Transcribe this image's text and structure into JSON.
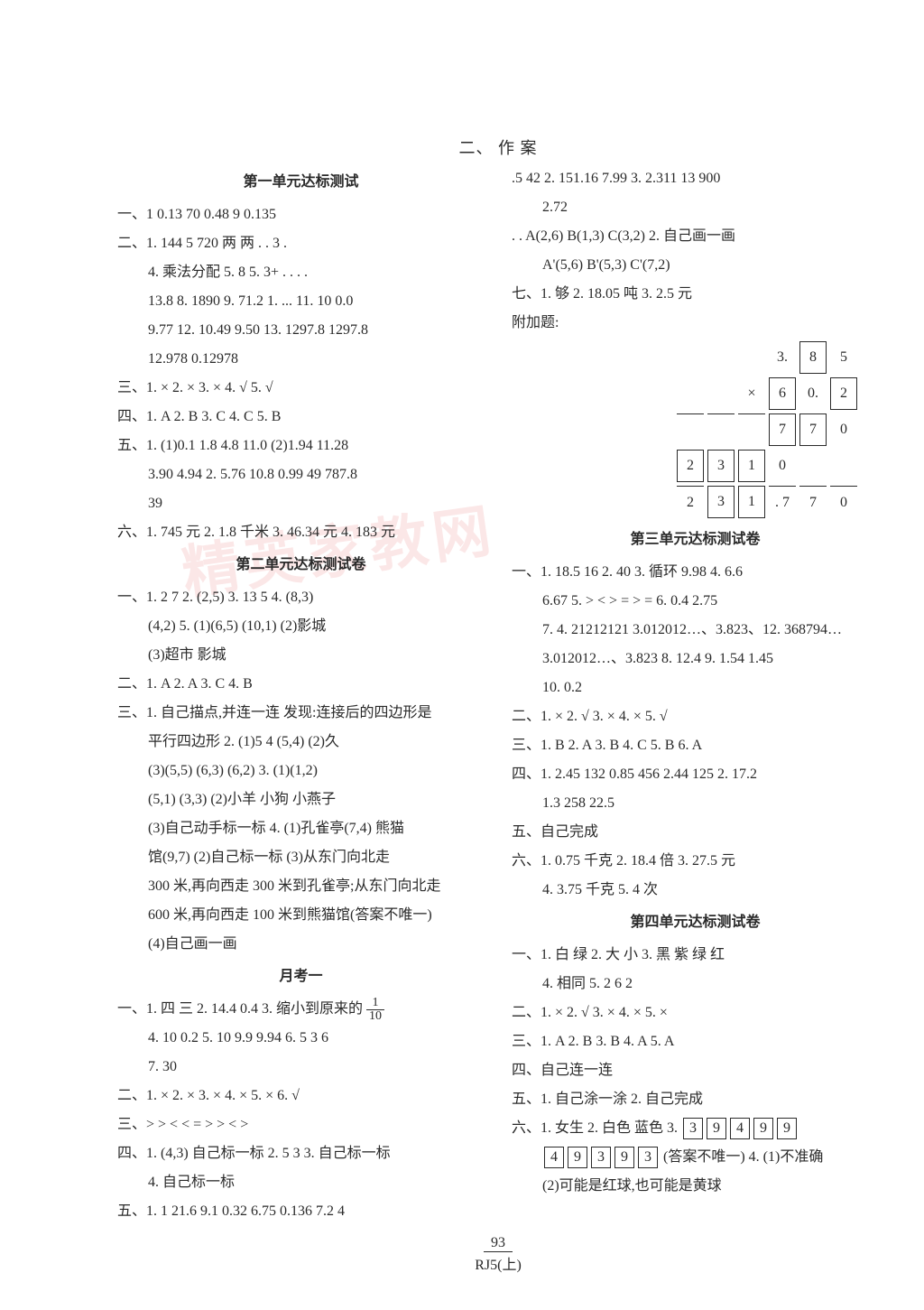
{
  "page": {
    "top_heading": "二、 作 案",
    "footer_page": "93",
    "footer_label": "RJ5(上)"
  },
  "watermark": "精英家教网",
  "left": {
    "unit1_title": "第一单元达标测试",
    "u1_l1": "一、1  0.13  70  0.48  9  0.135",
    "u1_l2": "二、1. 144  5  720  两  两   .   .   3    .",
    "u1_l3": "4. 乘法分配  5.  8   5.  3+  .  .  .   .",
    "u1_l4": "13.8  8. 1890  9. 71.2  1. ...  11. 10  0.0",
    "u1_l5": "9.77  12. 10.49  9.50  13. 1297.8  1297.8",
    "u1_l6": "12.978  0.12978",
    "u1_l7": "三、1. ×  2. ×  3. ×  4. √  5. √",
    "u1_l8": "四、1. A  2. B  3. C  4. C  5. B",
    "u1_l9": "五、1.  (1)0.1  1.8  4.8  11.0  (2)1.94  11.28",
    "u1_l10": "3.90  4.94  2. 5.76  10.8  0.99  49  787.8",
    "u1_l11": "39",
    "u1_l12": "六、1. 745 元  2. 1.8 千米  3. 46.34 元  4. 183 元",
    "unit2_title": "第二单元达标测试卷",
    "u2_l1": "一、1. 2  7  2.  (2,5)  3. 13  5   4.  (8,3)",
    "u2_l2": "(4,2)  5.  (1)(6,5)  (10,1)  (2)影城",
    "u2_l3": "(3)超市  影城",
    "u2_l4": "二、1. A  2. A  3. C  4. B",
    "u2_l5": "三、1. 自己描点,并连一连  发现:连接后的四边形是",
    "u2_l6": "平行四边形  2.  (1)5  4  (5,4)  (2)久",
    "u2_l7": "(3)(5,5)  (6,3)  (6,2)  3. (1)(1,2)",
    "u2_l8": "(5,1)  (3,3)  (2)小羊  小狗  小燕子",
    "u2_l9": "(3)自己动手标一标  4.  (1)孔雀亭(7,4)  熊猫",
    "u2_l10": "馆(9,7)  (2)自己标一标  (3)从东门向北走",
    "u2_l11": "300 米,再向西走 300 米到孔雀亭;从东门向北走",
    "u2_l12": "600 米,再向西走 100 米到熊猫馆(答案不唯一)",
    "u2_l13": "(4)自己画一画",
    "monthly_title": "月考一",
    "m1_l1a": "一、1.  四  三  2. 14.4  0.4  3.  缩小到原来的",
    "m1_l2": "4. 10  0.2  5. 10  9.9  9.94  6. 5  3  6",
    "m1_l3": "7. 30",
    "m1_l4": "二、1. ×  2. ×  3. ×  4. ×  5. ×  6. √",
    "m1_l5": "三、>  >  <  <  =  >  >  <  >",
    "m1_l6": "四、1. (4,3)  自己标一标  2. 5  3  3.  自己标一标",
    "m1_l7": "4. 自己标一标",
    "m1_l8": "五、1. 1  21.6  9.1  0.32  6.75  0.136  7.2  4"
  },
  "right": {
    "r_l1": ".5  42  2. 151.16  7.99  3. 2.311  13  900",
    "r_l2": "2.72",
    "r_l3": ".   . A(2,6)  B(1,3)  C(3,2)  2.  自己画一画",
    "r_l4": "A'(5,6)  B'(5,3)  C'(7,2)",
    "r_l5": "七、1. 够  2. 18.05 吨  3. 2.5 元",
    "r_l6": "附加题:",
    "mult": {
      "r1": [
        "",
        "",
        "",
        "3.",
        "8",
        "5"
      ],
      "r2": [
        "",
        "",
        "×",
        "6",
        "0.",
        "2"
      ],
      "r3": [
        "",
        "",
        "",
        "7",
        "7",
        "0"
      ],
      "r4": [
        "2",
        "3",
        "1",
        "0",
        "",
        ""
      ],
      "r5": [
        "2",
        "3",
        "1",
        ". 7",
        "7",
        "0"
      ]
    },
    "unit3_title": "第三单元达标测试卷",
    "u3_l1": "一、1. 18.5  16  2. 40  3.  循环  9.98  4. 6.6",
    "u3_l2": "6.67  5.  >  <  >  =  >  =  6. 0.4  2.75",
    "u3_l3": "7. 4. 21212121  3.012012…、3.823、12. 368794…",
    "u3_l4": "3.012012…、3.823   8.  12.4   9.  1.54   1.45",
    "u3_l5": "10. 0.2",
    "u3_l6": "二、1. ×  2. √  3. ×  4. ×  5. √",
    "u3_l7": "三、1. B  2. A  3. B  4. C  5. B  6. A",
    "u3_l8": "四、1. 2.45  132  0.85  456  2.44  125  2. 17.2",
    "u3_l9": "1.3  258  22.5",
    "u3_l10": "五、自己完成",
    "u3_l11": "六、1. 0.75 千克  2. 18.4 倍  3. 27.5 元",
    "u3_l12": "4. 3.75 千克  5.  4 次",
    "unit4_title": "第四单元达标测试卷",
    "u4_l1": "一、1.  白  绿  2.  大  小  3.  黑  紫  绿  红",
    "u4_l2": "4.  相同  5. 2  6  2",
    "u4_l3": "二、1. ×  2. √  3. ×  4. ×  5. ×",
    "u4_l4": "三、1. A  2. B  3. B  4. A  5. A",
    "u4_l5": "四、自己连一连",
    "u4_l6": "五、1. 自己涂一涂  2.  自己完成",
    "u4_l7a": "六、1. 女生  2. 白色  蓝色  3.",
    "u4_boxes1": [
      "3",
      "9",
      "4",
      "9",
      "9"
    ],
    "u4_boxes2": [
      "4",
      "9",
      "3",
      "9",
      "3"
    ],
    "u4_l8b": "(答案不唯一)  4.  (1)不准确",
    "u4_l9": "(2)可能是红球,也可能是黄球"
  }
}
